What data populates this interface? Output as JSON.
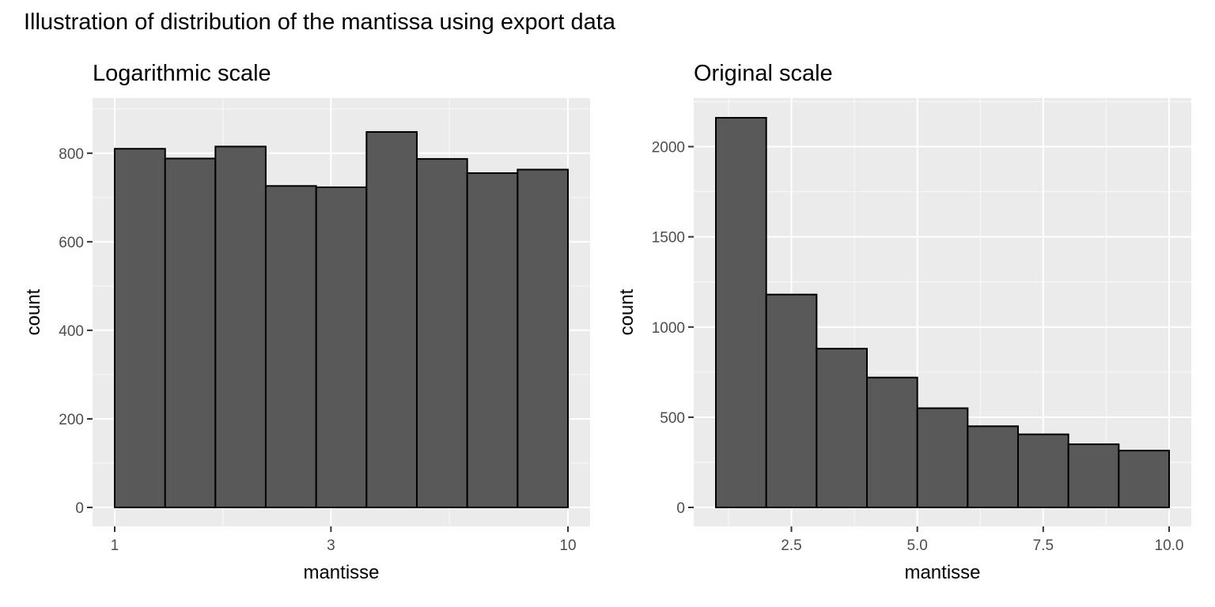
{
  "title": "Illustration of distribution of the mantissa using export data",
  "chart_data": [
    {
      "type": "bar",
      "title": "Logarithmic scale",
      "xlabel": "mantisse",
      "ylabel": "count",
      "x_scale": "log10",
      "xlim": [
        1,
        10
      ],
      "ylim": [
        0,
        880
      ],
      "x_ticks": [
        1,
        3,
        10
      ],
      "y_ticks": [
        0,
        200,
        400,
        600,
        800
      ],
      "bin_edges": [
        1,
        1.292,
        1.668,
        2.154,
        2.783,
        3.594,
        4.642,
        5.995,
        7.743,
        10
      ],
      "values": [
        810,
        788,
        815,
        726,
        723,
        848,
        787,
        755,
        763
      ],
      "grid": true,
      "legend": "none"
    },
    {
      "type": "bar",
      "title": "Original scale",
      "xlabel": "mantisse",
      "ylabel": "count",
      "x_scale": "linear",
      "xlim": [
        1,
        10
      ],
      "ylim": [
        0,
        2160
      ],
      "x_ticks": [
        2.5,
        5.0,
        7.5,
        10.0
      ],
      "y_ticks": [
        0,
        500,
        1000,
        1500,
        2000
      ],
      "bin_edges": [
        1,
        2,
        3,
        4,
        5,
        6,
        7,
        8,
        9,
        10
      ],
      "values": [
        2160,
        1180,
        880,
        720,
        550,
        450,
        405,
        350,
        315
      ],
      "grid": true,
      "legend": "none"
    }
  ]
}
